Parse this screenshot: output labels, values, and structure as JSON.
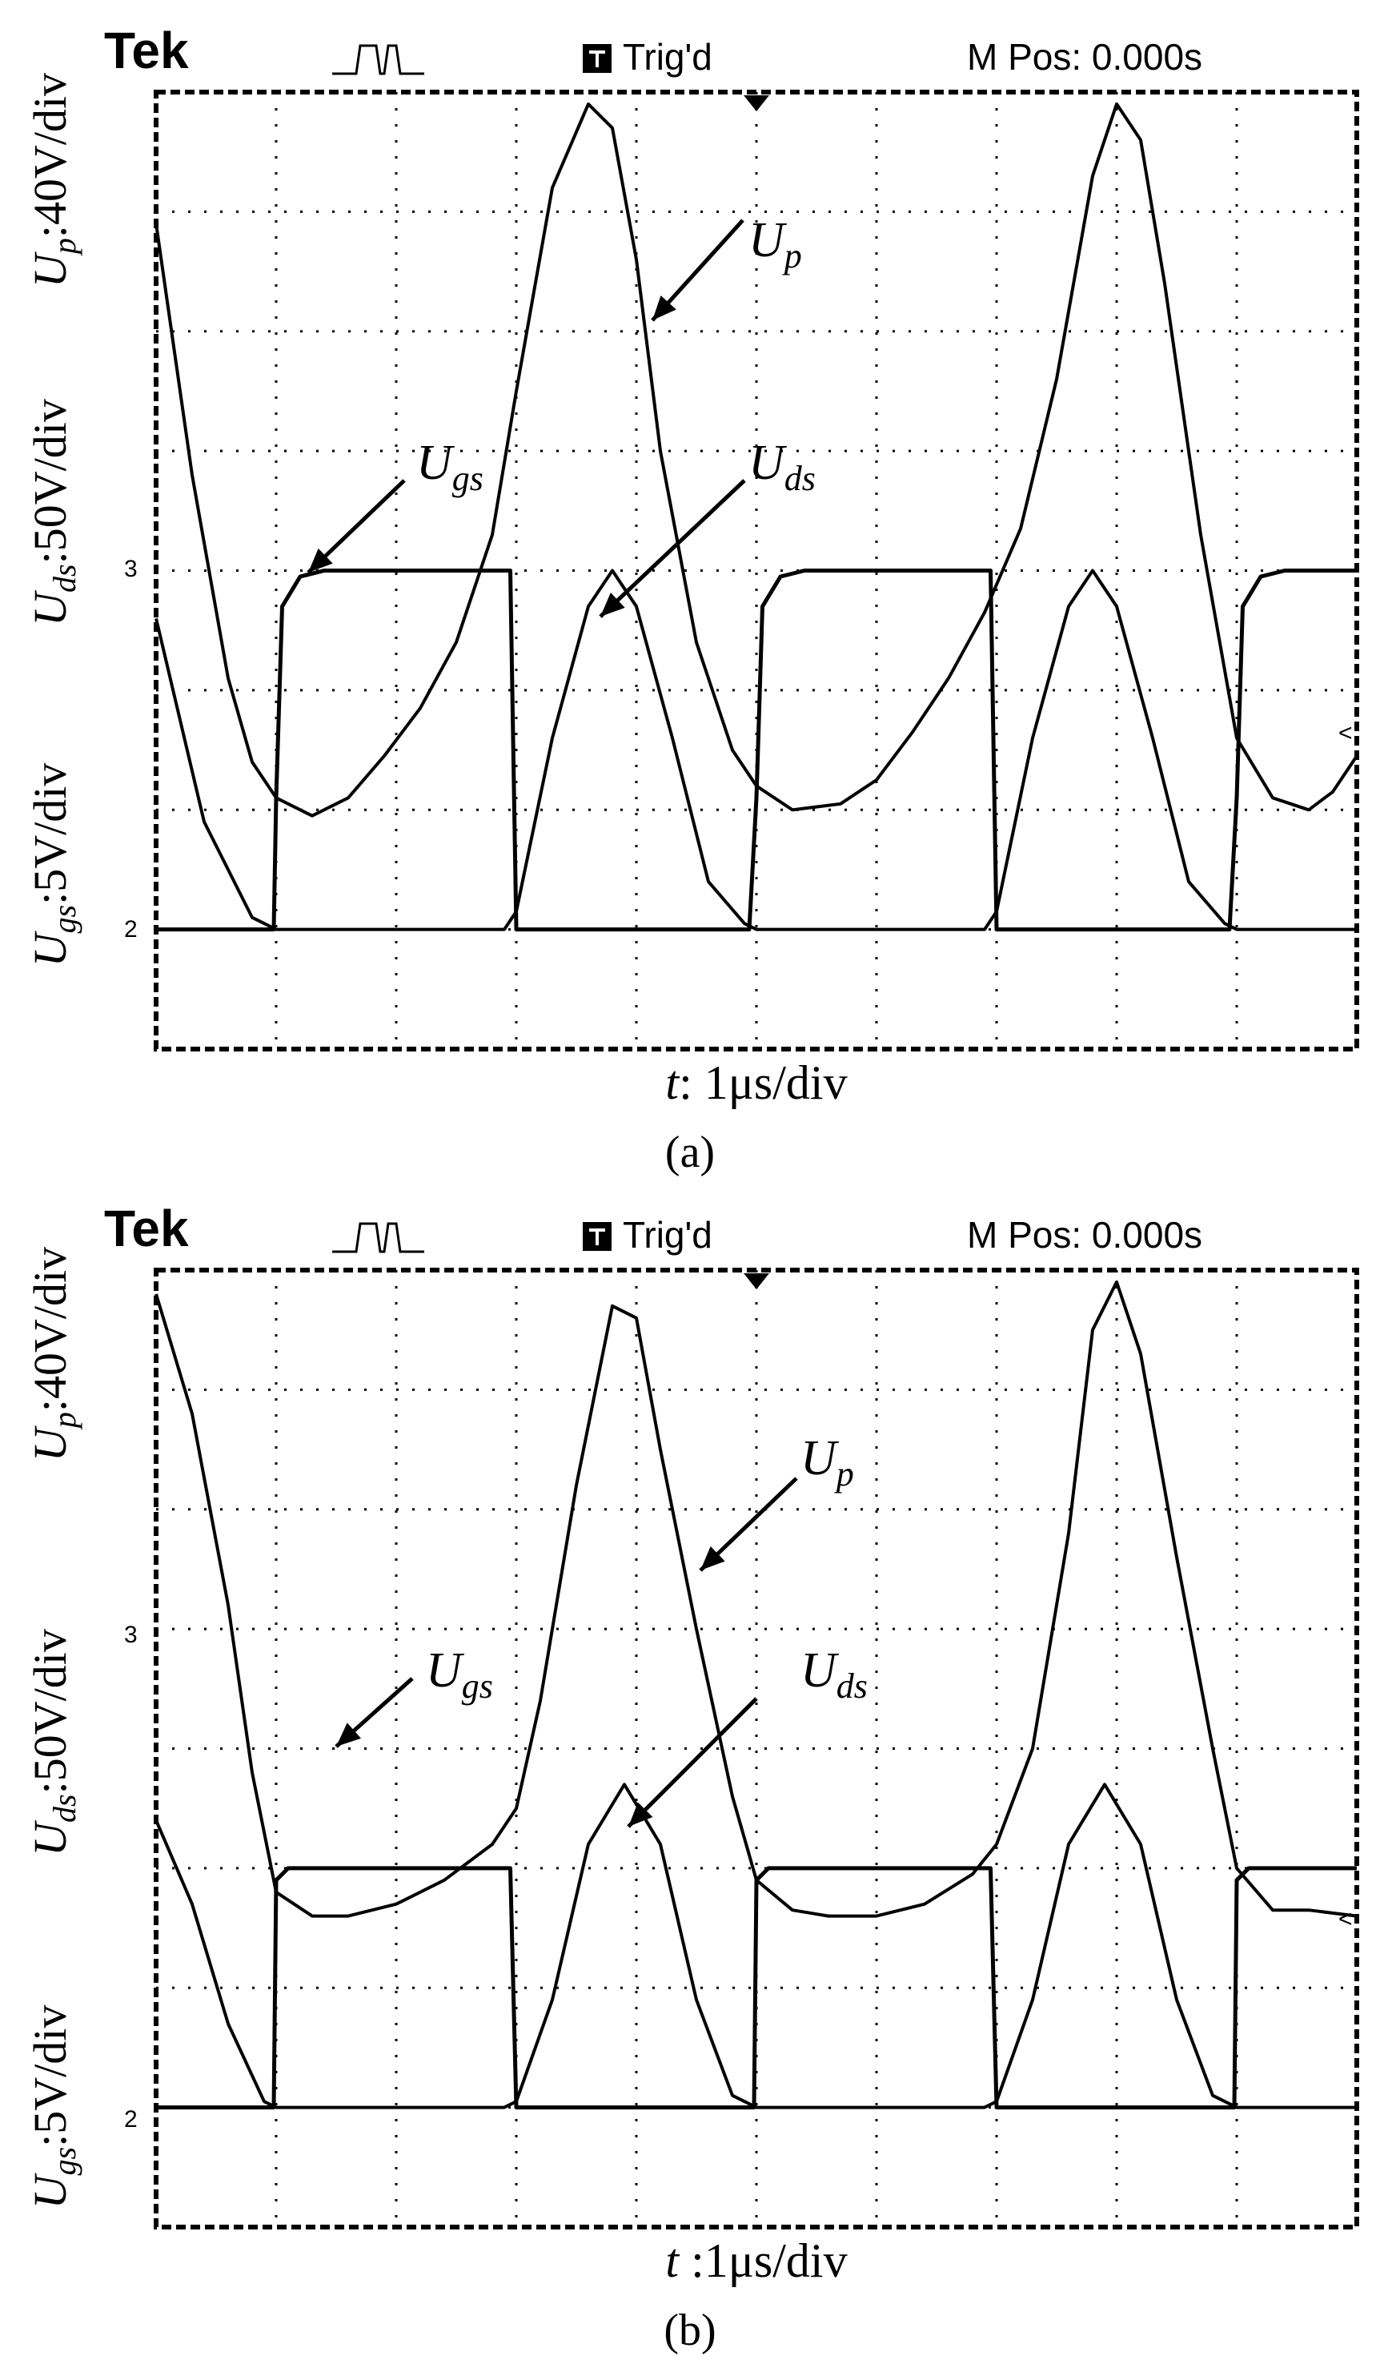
{
  "colors": {
    "background": "#ffffff",
    "ink": "#000000"
  },
  "chart_data": [
    {
      "type": "line",
      "panel": "(a)",
      "scope": {
        "brand": "Tek",
        "trigger": "Trig'd",
        "position": "M Pos: 0.000s"
      },
      "y_labels": {
        "up": {
          "sym": "U",
          "sub": "p",
          "scale": ":40V/div"
        },
        "uds": {
          "sym": "U",
          "sub": "ds",
          "scale": ":50V/div"
        },
        "ugs": {
          "sym": "U",
          "sub": "gs",
          "scale": ":5V/div"
        }
      },
      "xlabel": {
        "sym": "t",
        "text": ": 1μs/div"
      },
      "caption": "(a)",
      "annotations": [
        {
          "base": "U",
          "sub": "p"
        },
        {
          "base": "U",
          "sub": "gs"
        },
        {
          "base": "U",
          "sub": "ds"
        }
      ],
      "markers": [
        {
          "label": "3"
        },
        {
          "label": "2"
        },
        {
          "label": "<"
        }
      ],
      "xlim": [
        0,
        10
      ],
      "ylim": [
        -4,
        4
      ],
      "units": "divisions",
      "series": [
        {
          "name": "U_p",
          "scale": "40V/div",
          "x": [
            0,
            0.3,
            0.6,
            0.8,
            1.0,
            1.3,
            1.6,
            1.9,
            2.2,
            2.5,
            2.8,
            3.0,
            3.3,
            3.6,
            3.8,
            4.0,
            4.2,
            4.5,
            4.8,
            5.0,
            5.3,
            5.7,
            6.0,
            6.3,
            6.6,
            6.9,
            7.2,
            7.5,
            7.8,
            8.0,
            8.2,
            8.4,
            8.7,
            9.0,
            9.3,
            9.6,
            9.8,
            10.0
          ],
          "y": [
            2.9,
            0.8,
            -0.9,
            -1.6,
            -1.9,
            -2.05,
            -1.9,
            -1.55,
            -1.15,
            -0.6,
            0.3,
            1.5,
            3.2,
            3.9,
            3.7,
            2.6,
            1.0,
            -0.6,
            -1.5,
            -1.8,
            -2.0,
            -1.95,
            -1.75,
            -1.35,
            -0.9,
            -0.35,
            0.35,
            1.6,
            3.3,
            3.9,
            3.6,
            2.4,
            0.3,
            -1.4,
            -1.9,
            -2.0,
            -1.85,
            -1.55
          ]
        },
        {
          "name": "U_ds",
          "scale": "50V/div",
          "x": [
            0,
            0.4,
            0.8,
            1.0,
            2.9,
            3.0,
            3.3,
            3.6,
            3.8,
            4.0,
            4.3,
            4.6,
            4.9,
            5.0,
            6.9,
            7.0,
            7.3,
            7.6,
            7.8,
            8.0,
            8.3,
            8.6,
            8.9,
            9.0,
            10.0
          ],
          "y": [
            -0.4,
            -2.1,
            -2.9,
            -3.0,
            -3.0,
            -2.85,
            -1.4,
            -0.3,
            0.0,
            -0.3,
            -1.4,
            -2.6,
            -2.95,
            -3.0,
            -3.0,
            -2.85,
            -1.4,
            -0.3,
            0.0,
            -0.3,
            -1.4,
            -2.6,
            -2.95,
            -3.0,
            -3.0
          ]
        },
        {
          "name": "U_gs",
          "scale": "5V/div",
          "x": [
            0,
            0.98,
            1.0,
            1.05,
            1.2,
            1.4,
            2.95,
            3.0,
            4.94,
            5.0,
            5.05,
            5.2,
            5.4,
            6.95,
            7.0,
            8.94,
            9.0,
            9.05,
            9.2,
            9.4,
            10.0
          ],
          "y": [
            -3.0,
            -3.0,
            -1.9,
            -0.3,
            -0.05,
            0.0,
            0.0,
            -3.0,
            -3.0,
            -1.9,
            -0.3,
            -0.05,
            0.0,
            0.0,
            -3.0,
            -3.0,
            -1.9,
            -0.3,
            -0.05,
            0.0,
            0.0
          ]
        }
      ]
    },
    {
      "type": "line",
      "panel": "(b)",
      "scope": {
        "brand": "Tek",
        "trigger": "Trig'd",
        "position": "M Pos: 0.000s"
      },
      "y_labels": {
        "up": {
          "sym": "U",
          "sub": "p",
          "scale": ":40V/div"
        },
        "uds": {
          "sym": "U",
          "sub": "ds",
          "scale": ":50V/div"
        },
        "ugs": {
          "sym": "U",
          "sub": "gs",
          "scale": ":5V/div"
        }
      },
      "xlabel": {
        "sym": "t",
        "text": " :1μs/div"
      },
      "caption": "(b)",
      "annotations": [
        {
          "base": "U",
          "sub": "p"
        },
        {
          "base": "U",
          "sub": "gs"
        },
        {
          "base": "U",
          "sub": "ds"
        }
      ],
      "markers": [
        {
          "label": "3"
        },
        {
          "label": "2"
        },
        {
          "label": "<"
        }
      ],
      "xlim": [
        0,
        10
      ],
      "ylim": [
        -4,
        4
      ],
      "units": "divisions",
      "series": [
        {
          "name": "U_p",
          "scale": "40V/div",
          "x": [
            0,
            0.3,
            0.6,
            0.8,
            1.0,
            1.3,
            1.6,
            2.0,
            2.4,
            2.8,
            3.0,
            3.2,
            3.5,
            3.8,
            4.0,
            4.2,
            4.5,
            4.8,
            5.0,
            5.3,
            5.6,
            6.0,
            6.4,
            6.8,
            7.0,
            7.3,
            7.6,
            7.8,
            8.0,
            8.2,
            8.5,
            8.8,
            9.0,
            9.3,
            9.6,
            10.0
          ],
          "y": [
            3.8,
            2.8,
            1.2,
            -0.2,
            -1.2,
            -1.4,
            -1.4,
            -1.3,
            -1.1,
            -0.8,
            -0.5,
            0.4,
            2.2,
            3.7,
            3.6,
            2.5,
            1.0,
            -0.4,
            -1.1,
            -1.35,
            -1.4,
            -1.4,
            -1.3,
            -1.05,
            -0.8,
            0.0,
            1.8,
            3.5,
            3.9,
            3.3,
            1.6,
            0.0,
            -1.0,
            -1.35,
            -1.35,
            -1.4
          ]
        },
        {
          "name": "U_ds",
          "scale": "50V/div",
          "x": [
            0,
            0.3,
            0.6,
            0.9,
            1.0,
            2.9,
            3.0,
            3.3,
            3.6,
            3.9,
            4.2,
            4.5,
            4.8,
            5.0,
            6.9,
            7.0,
            7.3,
            7.6,
            7.9,
            8.2,
            8.5,
            8.8,
            9.0,
            10.0
          ],
          "y": [
            -0.6,
            -1.3,
            -2.3,
            -2.95,
            -3.0,
            -3.0,
            -2.95,
            -2.1,
            -0.8,
            -0.3,
            -0.8,
            -2.1,
            -2.9,
            -3.0,
            -3.0,
            -2.95,
            -2.1,
            -0.8,
            -0.3,
            -0.8,
            -2.1,
            -2.9,
            -3.0,
            -3.0
          ]
        },
        {
          "name": "U_gs",
          "scale": "5V/div",
          "x": [
            0,
            0.98,
            1.0,
            1.1,
            2.95,
            3.0,
            4.98,
            5.0,
            5.1,
            6.95,
            7.0,
            8.98,
            9.0,
            9.1,
            10.0
          ],
          "y": [
            -3.0,
            -3.0,
            -1.1,
            -1.0,
            -1.0,
            -3.0,
            -3.0,
            -1.1,
            -1.0,
            -1.0,
            -3.0,
            -3.0,
            -1.1,
            -1.0,
            -1.0
          ]
        }
      ]
    }
  ]
}
